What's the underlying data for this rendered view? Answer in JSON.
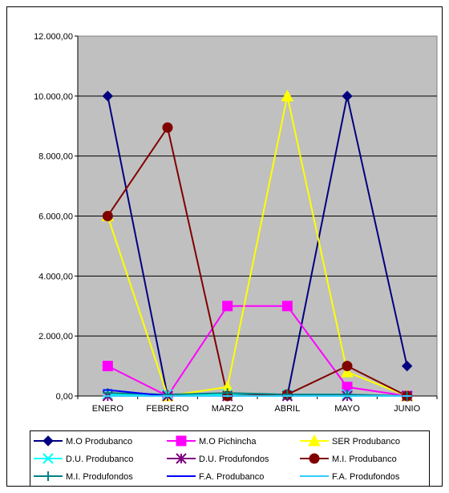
{
  "chart_data": {
    "type": "line",
    "title": "",
    "xlabel": "",
    "ylabel": "",
    "categories": [
      "ENERO",
      "FEBRERO",
      "MARZO",
      "ABRIL",
      "MAYO",
      "JUNIO"
    ],
    "ylim": [
      0,
      12000
    ],
    "yticks": [
      "0,00",
      "2.000,00",
      "4.000,00",
      "6.000,00",
      "8.000,00",
      "10.000,00",
      "12.000,00"
    ],
    "grid": true,
    "legend_position": "bottom",
    "series": [
      {
        "name": "M.O Produbanco",
        "color": "#000080",
        "marker": "diamond",
        "values": [
          10000,
          0,
          0,
          0,
          10000,
          1000
        ]
      },
      {
        "name": "M.O Pichincha",
        "color": "#FF00FF",
        "marker": "square",
        "values": [
          1000,
          0,
          3000,
          3000,
          300,
          0
        ]
      },
      {
        "name": "SER Produbanco",
        "color": "#FFFF00",
        "marker": "triangle",
        "values": [
          6000,
          0,
          300,
          10000,
          800,
          0
        ]
      },
      {
        "name": "D.U. Produbanco",
        "color": "#00FFFF",
        "marker": "x",
        "values": [
          50,
          50,
          50,
          50,
          50,
          0
        ]
      },
      {
        "name": "D.U. Produfondos",
        "color": "#800080",
        "marker": "star",
        "values": [
          0,
          0,
          0,
          0,
          0,
          0
        ]
      },
      {
        "name": "M.I. Produbanco",
        "color": "#800000",
        "marker": "circle",
        "values": [
          6000,
          8950,
          0,
          50,
          1000,
          0
        ]
      },
      {
        "name": "M.I. Produfondos",
        "color": "#008080",
        "marker": "plus",
        "values": [
          100,
          50,
          100,
          50,
          50,
          0
        ]
      },
      {
        "name": "F.A. Produbanco",
        "color": "#0000FF",
        "marker": "dash",
        "values": [
          200,
          0,
          0,
          0,
          0,
          0
        ]
      },
      {
        "name": "F.A. Produfondos",
        "color": "#33CCFF",
        "marker": "dash",
        "values": [
          0,
          0,
          0,
          0,
          0,
          0
        ]
      }
    ]
  }
}
